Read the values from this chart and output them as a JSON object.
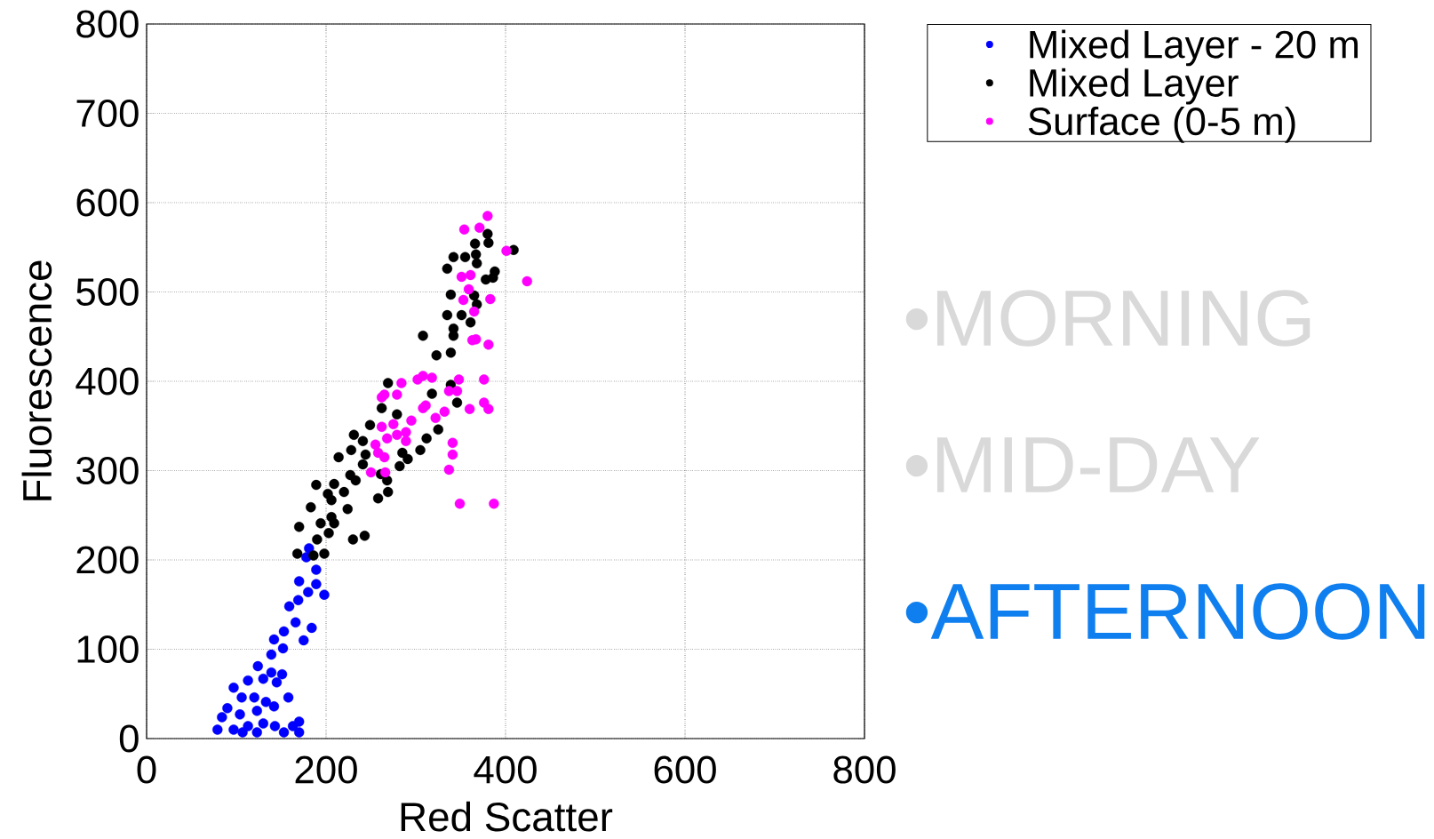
{
  "chart_data": {
    "type": "scatter",
    "xlabel": "Red Scatter",
    "ylabel": "Fluorescence",
    "xlim": [
      0,
      800
    ],
    "ylim": [
      0,
      800
    ],
    "xticks": [
      0,
      200,
      400,
      600,
      800
    ],
    "yticks": [
      0,
      100,
      200,
      300,
      400,
      500,
      600,
      700,
      800
    ],
    "grid": true,
    "marker": "circle",
    "legend": "top right",
    "series": [
      {
        "name": "Mixed Layer - 20 m",
        "color": "#0000ff",
        "x": [
          181,
          178,
          189,
          170,
          189,
          198,
          180,
          159,
          169,
          166,
          184,
          153,
          175,
          142,
          152,
          139,
          124,
          139,
          151,
          145,
          113,
          130,
          97,
          158,
          120,
          106,
          142,
          84,
          79,
          97,
          113,
          130,
          143,
          163,
          170,
          170,
          153,
          107,
          123,
          90,
          104,
          123,
          133
        ],
        "values": [
          213,
          203,
          189,
          176,
          173,
          161,
          164,
          148,
          155,
          130,
          124,
          120,
          110,
          111,
          101,
          94,
          81,
          74,
          72,
          63,
          65,
          67,
          57,
          46,
          46,
          46,
          36,
          24,
          10,
          10,
          14,
          17,
          14,
          14,
          19,
          7,
          7,
          7,
          7,
          34,
          27,
          31,
          41
        ]
      },
      {
        "name": "Mixed Layer",
        "color": "#000000",
        "x": [
          380,
          381,
          366,
          409,
          342,
          355,
          367,
          368,
          335,
          388,
          378,
          386,
          339,
          365,
          368,
          335,
          351,
          361,
          342,
          342,
          308,
          323,
          339,
          269,
          339,
          318,
          346,
          262,
          279,
          325,
          312,
          305,
          249,
          231,
          228,
          214,
          241,
          244,
          285,
          291,
          241,
          227,
          282,
          261,
          209,
          189,
          233,
          202,
          220,
          206,
          183,
          224,
          258,
          269,
          268,
          206,
          194,
          209,
          170,
          203,
          190,
          230,
          243,
          168,
          186,
          198
        ],
        "values": [
          565,
          555,
          554,
          547,
          539,
          539,
          542,
          532,
          526,
          523,
          514,
          516,
          497,
          496,
          486,
          474,
          474,
          466,
          459,
          451,
          451,
          429,
          432,
          398,
          396,
          386,
          376,
          370,
          363,
          346,
          336,
          323,
          351,
          340,
          323,
          315,
          333,
          318,
          320,
          313,
          307,
          295,
          305,
          296,
          285,
          284,
          289,
          274,
          276,
          267,
          259,
          257,
          269,
          276,
          289,
          248,
          241,
          241,
          237,
          230,
          223,
          223,
          227,
          207,
          205,
          207
        ]
      },
      {
        "name": "Surface (0-5 m)",
        "color": "#ff00ff",
        "x": [
          380,
          354,
          371,
          401,
          424,
          351,
          361,
          359,
          353,
          383,
          365,
          363,
          367,
          381,
          348,
          376,
          360,
          376,
          381,
          341,
          341,
          337,
          349,
          387,
          308,
          318,
          302,
          284,
          265,
          262,
          279,
          308,
          311,
          332,
          337,
          346,
          295,
          275,
          262,
          268,
          255,
          258,
          265,
          279,
          289,
          322,
          289,
          250,
          266
        ],
        "values": [
          585,
          570,
          572,
          546,
          512,
          517,
          519,
          503,
          491,
          492,
          478,
          446,
          447,
          441,
          402,
          402,
          369,
          376,
          369,
          331,
          318,
          301,
          263,
          263,
          406,
          404,
          402,
          398,
          385,
          382,
          385,
          370,
          373,
          366,
          389,
          389,
          356,
          352,
          349,
          336,
          329,
          320,
          315,
          340,
          343,
          359,
          333,
          298,
          298
        ]
      }
    ],
    "annotations": [
      "•MORNING",
      "•MID-DAY",
      "•AFTERNOON"
    ]
  }
}
